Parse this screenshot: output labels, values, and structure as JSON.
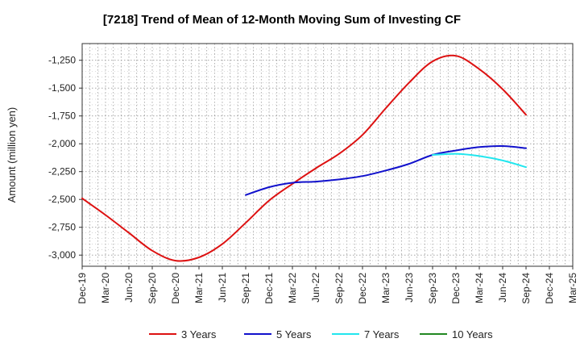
{
  "chart_data": {
    "type": "line",
    "title": "[7218]  Trend of Mean of 12-Month Moving Sum of Investing CF",
    "xlabel": "",
    "ylabel": "Amount (million yen)",
    "ylim": [
      -3100,
      -1100
    ],
    "yticks": [
      -1250,
      -1500,
      -1750,
      -2000,
      -2250,
      -2500,
      -2750,
      -3000
    ],
    "ytick_labels": [
      "-1,250",
      "-1,500",
      "-1,750",
      "-2,000",
      "-2,250",
      "-2,500",
      "-2,750",
      "-3,000"
    ],
    "categories": [
      "Dec-19",
      "Mar-20",
      "Jun-20",
      "Sep-20",
      "Dec-20",
      "Mar-21",
      "Jun-21",
      "Sep-21",
      "Dec-21",
      "Mar-22",
      "Jun-22",
      "Sep-22",
      "Dec-22",
      "Mar-23",
      "Jun-23",
      "Sep-23",
      "Dec-23",
      "Mar-24",
      "Jun-24",
      "Sep-24",
      "Dec-24",
      "Mar-25"
    ],
    "grid": true,
    "legend_position": "bottom",
    "series": [
      {
        "name": "3 Years",
        "color": "#dd1111",
        "values": [
          -2490,
          -2640,
          -2800,
          -2960,
          -3050,
          -3020,
          -2900,
          -2710,
          -2510,
          -2360,
          -2220,
          -2090,
          -1920,
          -1680,
          -1450,
          -1260,
          -1210,
          -1330,
          -1510,
          -1740,
          null,
          null
        ]
      },
      {
        "name": "5 Years",
        "color": "#1111cc",
        "values": [
          null,
          null,
          null,
          null,
          null,
          null,
          null,
          -2460,
          -2390,
          -2350,
          -2340,
          -2320,
          -2290,
          -2240,
          -2180,
          -2100,
          -2060,
          -2030,
          -2020,
          -2040,
          null,
          null
        ]
      },
      {
        "name": "7 Years",
        "color": "#22e6ee",
        "values": [
          null,
          null,
          null,
          null,
          null,
          null,
          null,
          null,
          null,
          null,
          null,
          null,
          null,
          null,
          null,
          -2100,
          -2090,
          -2110,
          -2150,
          -2210,
          null,
          null
        ]
      },
      {
        "name": "10 Years",
        "color": "#228822",
        "values": [
          null,
          null,
          null,
          null,
          null,
          null,
          null,
          null,
          null,
          null,
          null,
          null,
          null,
          null,
          null,
          null,
          null,
          null,
          null,
          null,
          null,
          null
        ]
      }
    ]
  }
}
